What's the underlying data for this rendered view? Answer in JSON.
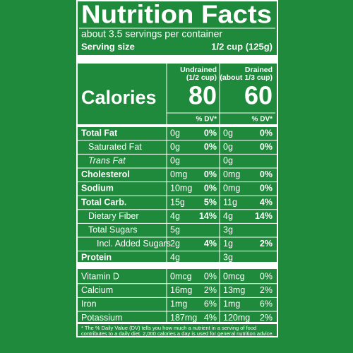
{
  "title": "Nutrition Facts",
  "servings": "about 3.5 servings per container",
  "serving_size": {
    "label": "Serving size",
    "value": "1/2 cup (125g)"
  },
  "columns": [
    {
      "name": "Undrained",
      "amount": "(1/2 cup)",
      "calories": "80"
    },
    {
      "name": "Drained",
      "amount": "(about 1/3 cup)",
      "calories": "60"
    }
  ],
  "calories_label": "Calories",
  "dv_header": "% DV*",
  "rows": [
    {
      "name": "Total Fat",
      "values": [
        "0g",
        "0%",
        "0g",
        "0%"
      ]
    },
    {
      "name": "Saturated Fat",
      "values": [
        "0g",
        "0%",
        "0g",
        "0%"
      ]
    },
    {
      "name": "Trans Fat",
      "values": [
        "0g",
        null,
        "0g",
        null
      ]
    },
    {
      "name": "Cholesterol",
      "values": [
        "0mg",
        "0%",
        "0mg",
        "0%"
      ]
    },
    {
      "name": "Sodium",
      "values": [
        "10mg",
        "0%",
        "0mg",
        "0%"
      ]
    },
    {
      "name": "Total Carb.",
      "values": [
        "15g",
        "5%",
        "11g",
        "4%"
      ]
    },
    {
      "name": "Dietary Fiber",
      "values": [
        "4g",
        "14%",
        "4g",
        "14%"
      ]
    },
    {
      "name": "Total Sugars",
      "values": [
        "5g",
        null,
        "3g",
        null
      ]
    },
    {
      "name": "Incl. Added Sugars",
      "values": [
        "2g",
        "4%",
        "1g",
        "2%"
      ]
    },
    {
      "name": "Protein",
      "values": [
        "4g",
        null,
        "3g",
        null
      ]
    },
    {
      "name": "Vitamin D",
      "values": [
        "0mcg",
        "0%",
        "0mcg",
        "0%"
      ]
    },
    {
      "name": "Calcium",
      "values": [
        "16mg",
        "2%",
        "13mg",
        "2%"
      ]
    },
    {
      "name": "Iron",
      "values": [
        "1mg",
        "6%",
        "1mg",
        "6%"
      ]
    },
    {
      "name": "Potassium",
      "values": [
        "187mg",
        "4%",
        "120mg",
        "2%"
      ]
    }
  ],
  "footnote": [
    "* The % Daily Value (DV) tells you how much a nutrient in a serving of food",
    "contributes to a daily diet. 2,000 calories a day is used for general nutrition advice."
  ]
}
